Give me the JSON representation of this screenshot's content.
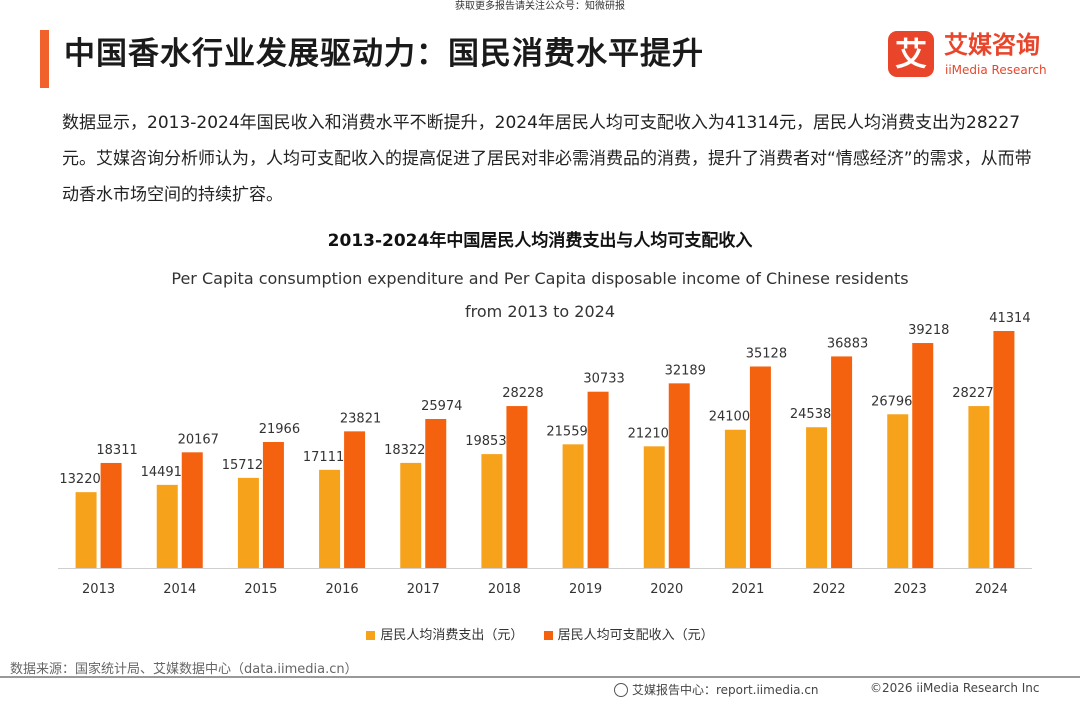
{
  "header": {
    "top_note": "获取更多报告请关注公众号：知微研报",
    "title": "中国香水行业发展驱动力：国民消费水平提升"
  },
  "logo": {
    "mark": "艾",
    "name_cn": "艾媒咨询",
    "name_en": "iiMedia Research"
  },
  "paragraph": "数据显示，2013-2024年国民收入和消费水平不断提升，2024年居民人均可支配收入为41314元，居民人均消费支出为28227元。艾媒咨询分析师认为，人均可支配收入的提高促进了居民对非必需消费品的消费，提升了消费者对“情感经济”的需求，从而带动香水市场空间的持续扩容。",
  "chart_data": {
    "type": "bar",
    "title": "2013-2024年中国居民人均消费支出与人均可支配收入",
    "subtitle_line1": "Per Capita consumption expenditure and Per Capita disposable income of Chinese residents",
    "subtitle_line2": "from 2013 to 2024",
    "categories": [
      "2013",
      "2014",
      "2015",
      "2016",
      "2017",
      "2018",
      "2019",
      "2020",
      "2021",
      "2022",
      "2023",
      "2024"
    ],
    "series": [
      {
        "name": "居民人均消费支出（元）",
        "color": "#f7a21b",
        "values": [
          13220,
          14491,
          15712,
          17111,
          18322,
          19853,
          21559,
          21210,
          24100,
          24538,
          26796,
          28227
        ]
      },
      {
        "name": "居民人均可支配收入（元）",
        "color": "#f5620f",
        "values": [
          18311,
          20167,
          21966,
          23821,
          25974,
          28228,
          30733,
          32189,
          35128,
          36883,
          39218,
          41314
        ]
      }
    ],
    "ylim": [
      0,
      41314
    ],
    "grid": false,
    "legend_position": "bottom"
  },
  "source": "数据来源：国家统计局、艾媒数据中心（data.iimedia.cn）",
  "footer": {
    "left": "艾媒报告中心：report.iimedia.cn",
    "right": "©2026  iiMedia Research Inc"
  },
  "colors": {
    "accent": "#f0612b",
    "brand": "#e8452a"
  }
}
